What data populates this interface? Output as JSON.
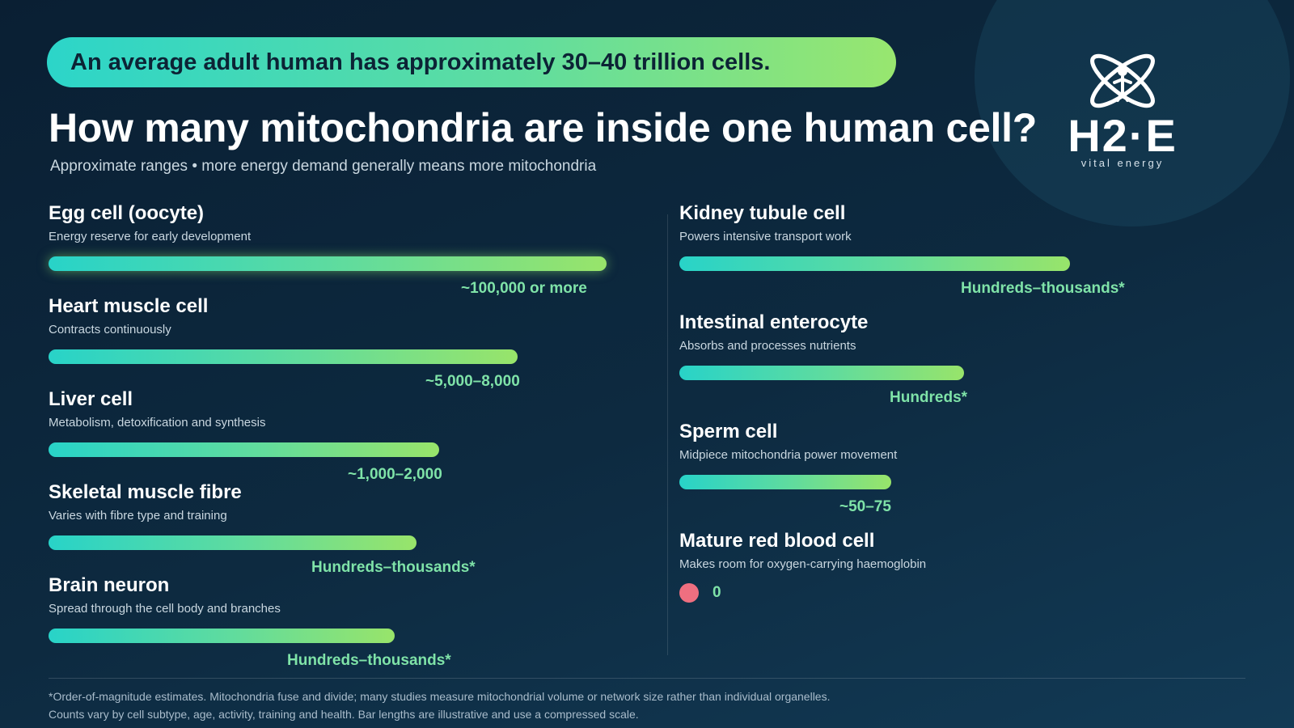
{
  "banner": {
    "text": "An average adult human has approximately 30–40 trillion cells."
  },
  "header": {
    "title": "How many mitochondria are inside one human cell?",
    "subtitle": "Approximate ranges • more energy demand generally means more mitochondria"
  },
  "logo": {
    "wordmark": "H2·E",
    "tagline": "vital energy"
  },
  "left_column": [
    {
      "title": "Egg cell (oocyte)",
      "desc": "Energy reserve for early development",
      "value": "~100,000 or more",
      "bar_fraction": 1.0
    },
    {
      "title": "Heart muscle cell",
      "desc": "Contracts continuously",
      "value": "~5,000–8,000",
      "bar_fraction": 0.84
    },
    {
      "title": "Liver cell",
      "desc": "Metabolism, detoxification and synthesis",
      "value": "~1,000–2,000",
      "bar_fraction": 0.7
    },
    {
      "title": "Skeletal muscle fibre",
      "desc": "Varies with fibre type and training",
      "value": "Hundreds–thousands*",
      "bar_fraction": 0.66
    },
    {
      "title": "Brain neuron",
      "desc": "Spread through the cell body and branches",
      "value": "Hundreds–thousands*",
      "bar_fraction": 0.62
    }
  ],
  "right_column": [
    {
      "title": "Kidney tubule cell",
      "desc": "Powers intensive transport work",
      "value": "Hundreds–thousands*",
      "bar_fraction": 0.7
    },
    {
      "title": "Intestinal enterocyte",
      "desc": "Absorbs and processes nutrients",
      "value": "Hundreds*",
      "bar_fraction": 0.51
    },
    {
      "title": "Sperm cell",
      "desc": "Midpiece mitochondria power movement",
      "value": "~50–75",
      "bar_fraction": 0.38
    },
    {
      "title": "Mature red blood cell",
      "desc": "Makes room for oxygen-carrying haemoglobin",
      "value": "0",
      "bar_fraction": 0
    }
  ],
  "colors": {
    "bar_start": "#28d3c8",
    "bar_end": "#98e46a",
    "value_text": "#7fe3a8",
    "zero_dot": "#ef6f80"
  },
  "footnotes": [
    "*Order-of-magnitude estimates. Mitochondria fuse and divide; many studies measure mitochondrial volume or network size rather than individual organelles.",
    "Counts vary by cell subtype, age, activity, training and health. Bar lengths are illustrative and use a compressed scale."
  ]
}
